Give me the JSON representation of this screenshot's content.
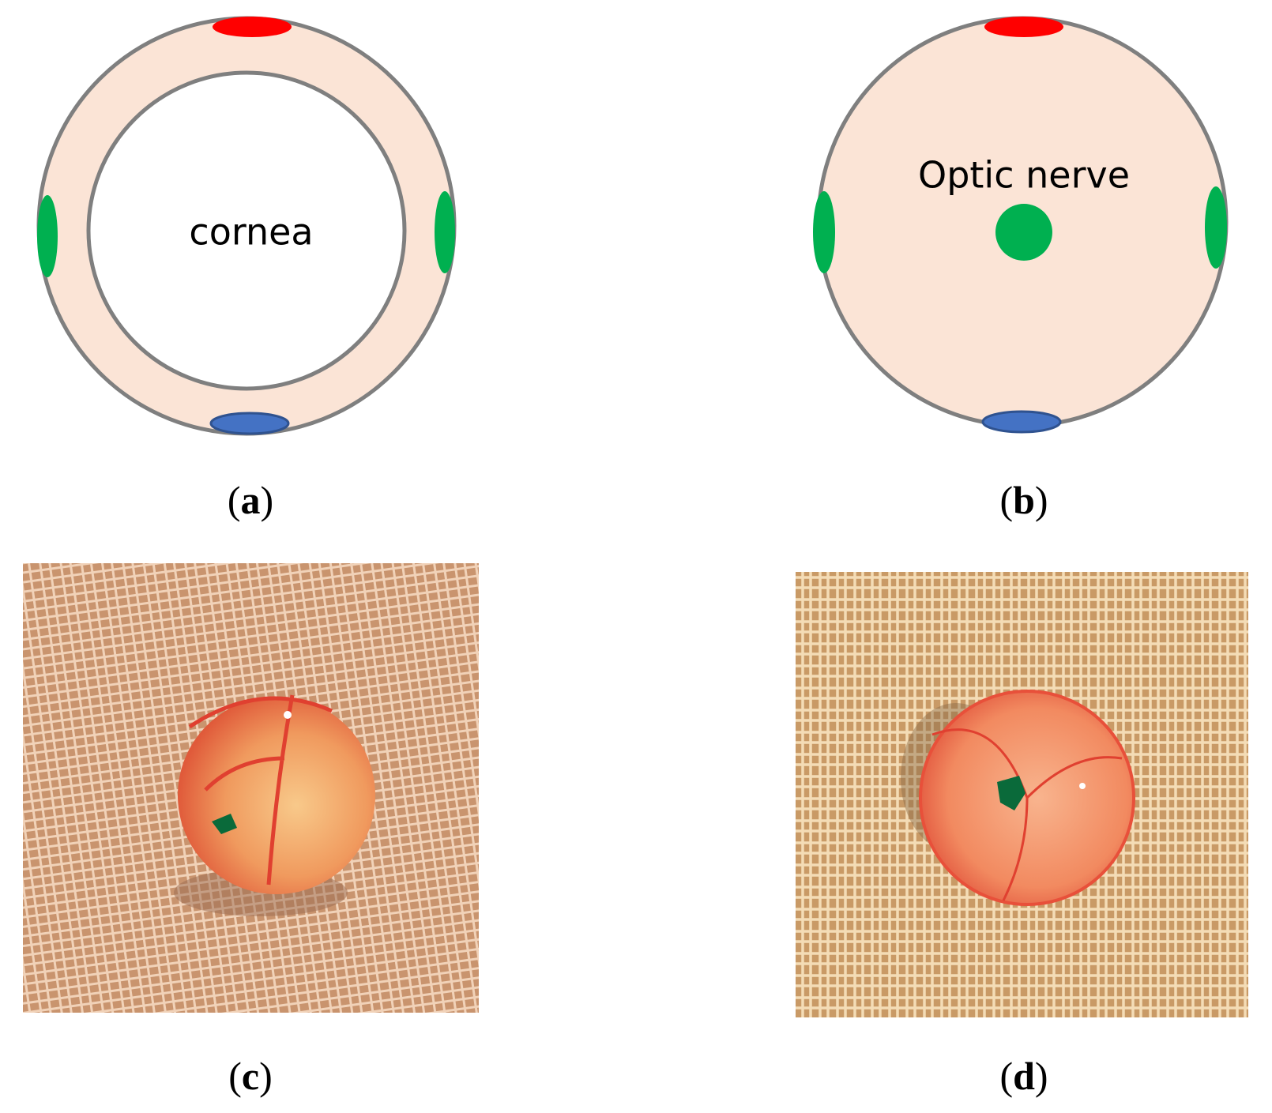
{
  "panels": [
    {
      "label": "(a)",
      "text": "cornea"
    },
    {
      "label": "(b)",
      "text": "Optic nerve"
    },
    {
      "label": "(c)"
    },
    {
      "label": "(d)"
    }
  ]
}
